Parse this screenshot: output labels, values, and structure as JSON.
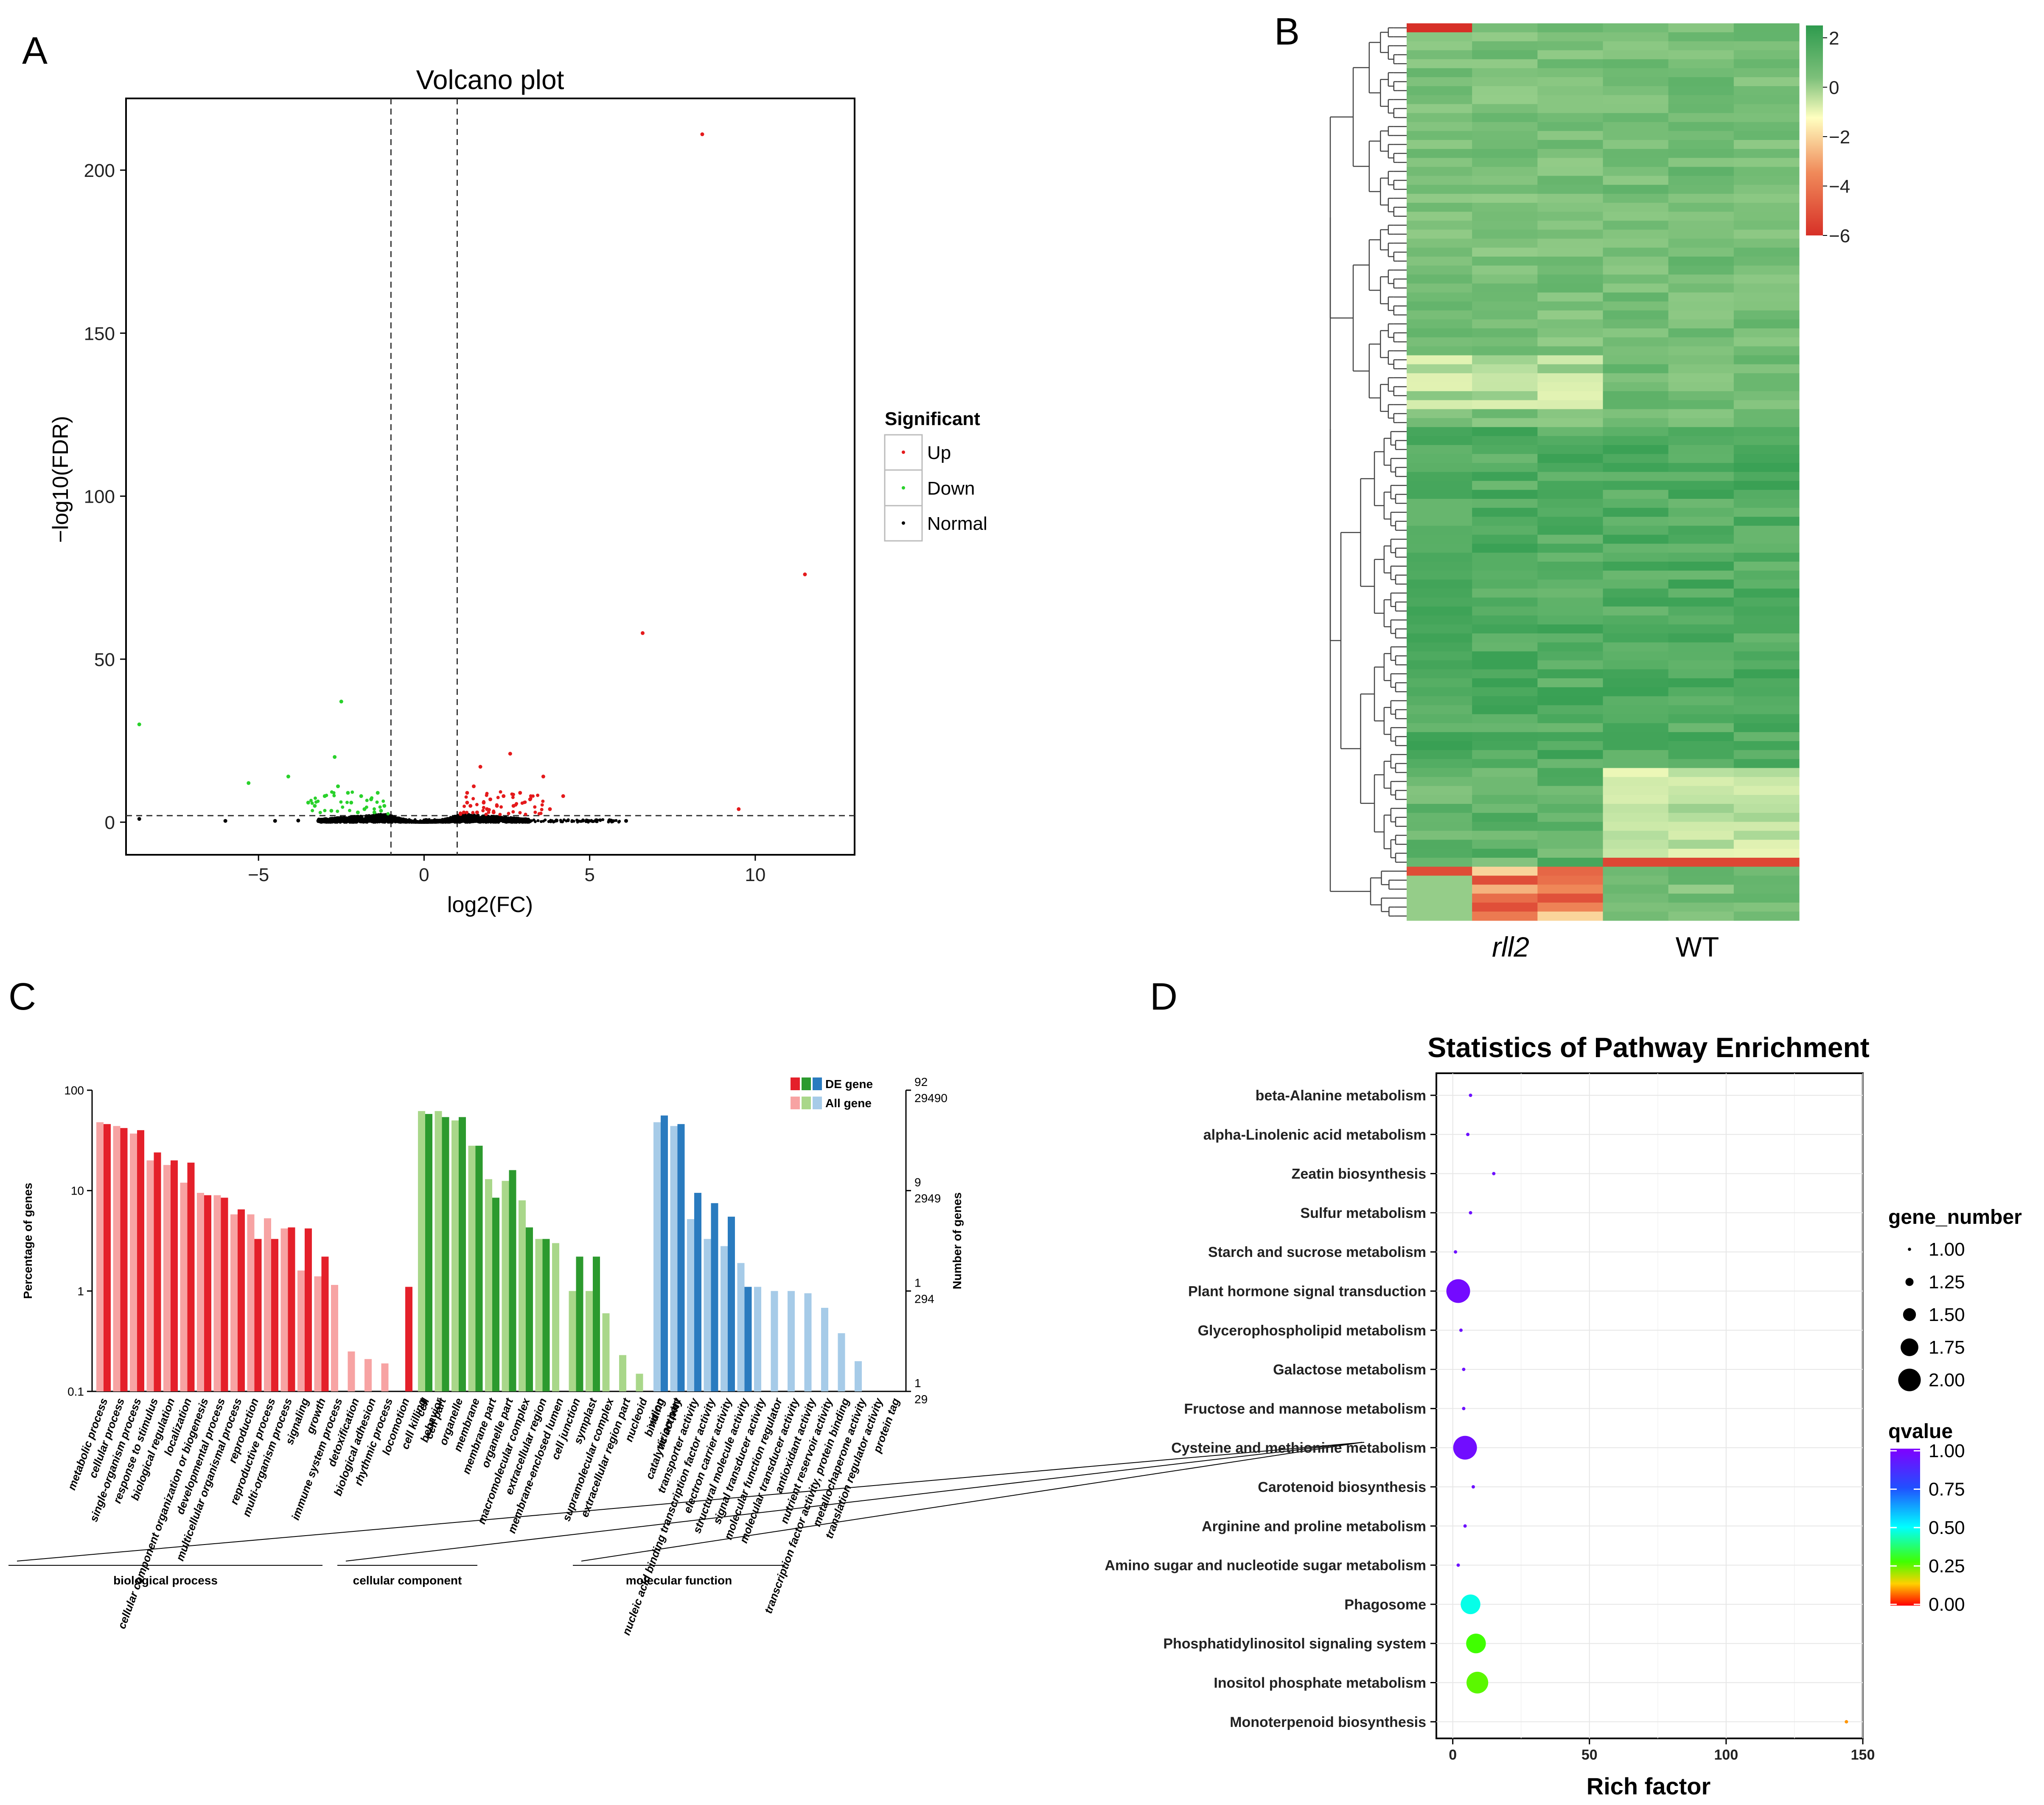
{
  "colors": {
    "up": "#e41a1c",
    "down": "#29d12b",
    "normal": "#000000",
    "go_bp_de": "#e4202a",
    "go_bp_all": "#f7a3a3",
    "go_cc_de": "#2c9a2e",
    "go_cc_all": "#a9d78a",
    "go_mf_de": "#2a7bbf",
    "go_mf_all": "#a6cbe8"
  },
  "chart_data": [
    {
      "panel": "A",
      "type": "scatter",
      "title": "Volcano plot",
      "xlabel": "log2(FC)",
      "ylabel": "−log10(FDR)",
      "xlim": [
        -9,
        13
      ],
      "ylim": [
        -10,
        222
      ],
      "xticks": [
        -5,
        0,
        5,
        10
      ],
      "yticks": [
        0,
        50,
        100,
        150,
        200
      ],
      "threshold_x": [
        -1,
        1
      ],
      "threshold_y": 2,
      "legend": {
        "title": "Significant",
        "entries": [
          "Up",
          "Down",
          "Normal"
        ]
      },
      "series": [
        {
          "name": "Up",
          "points": [
            [
              8.4,
              211
            ],
            [
              11.5,
              76
            ],
            [
              6.6,
              58
            ],
            [
              2.6,
              21
            ],
            [
              3.6,
              14
            ],
            [
              1.7,
              17
            ],
            [
              4.2,
              8
            ],
            [
              2.9,
              9
            ],
            [
              3.2,
              7
            ],
            [
              9.5,
              4
            ],
            [
              1.3,
              9
            ],
            [
              1.5,
              11
            ],
            [
              1.8,
              6
            ],
            [
              2.2,
              5
            ],
            [
              2.4,
              8
            ],
            [
              1.9,
              4
            ],
            [
              1.2,
              3
            ],
            [
              1.4,
              5
            ],
            [
              2.0,
              7
            ],
            [
              2.7,
              5
            ],
            [
              3.8,
              4
            ],
            [
              1.6,
              3
            ],
            [
              1.1,
              2.5
            ],
            [
              2.1,
              3
            ],
            [
              1.3,
              6
            ]
          ]
        },
        {
          "name": "Down",
          "points": [
            [
              -8.6,
              30
            ],
            [
              -2.5,
              37
            ],
            [
              -2.7,
              20
            ],
            [
              -5.3,
              12
            ],
            [
              -4.1,
              14
            ],
            [
              -2.6,
              11
            ],
            [
              -1.9,
              8
            ],
            [
              -3.0,
              8
            ],
            [
              -1.6,
              7
            ],
            [
              -1.4,
              9
            ],
            [
              -2.2,
              6
            ],
            [
              -1.2,
              5
            ],
            [
              -3.3,
              5
            ],
            [
              -1.8,
              4
            ],
            [
              -2.8,
              3.5
            ],
            [
              -1.5,
              3
            ],
            [
              -2.0,
              3
            ],
            [
              -1.3,
              3.5
            ],
            [
              -3.5,
              6
            ],
            [
              -2.3,
              9
            ]
          ]
        },
        {
          "name": "Normal",
          "points": [
            [
              -8.6,
              1
            ],
            [
              -6.0,
              0.4
            ],
            [
              -4.5,
              0.4
            ],
            [
              -3.8,
              0.5
            ],
            [
              -3.0,
              0.6
            ],
            [
              4.0,
              0.5
            ],
            [
              4.8,
              0.5
            ],
            [
              5.2,
              0.6
            ],
            [
              5.6,
              0.6
            ],
            [
              6.1,
              0.4
            ]
          ]
        }
      ]
    },
    {
      "panel": "B",
      "type": "heatmap",
      "groups": [
        "rll2",
        "WT"
      ],
      "colorbar_ticks": [
        2,
        0,
        -2,
        -4,
        -6
      ],
      "colorbar_range": [
        -6,
        2.5
      ]
    },
    {
      "panel": "C",
      "type": "bar",
      "ylabel": "Percentage of genes",
      "y2label": "Number of genes",
      "yscale": "log",
      "yticks": [
        "0.1",
        "1",
        "10",
        "100"
      ],
      "right_ticks": [
        {
          "de": "92",
          "all": "29490",
          "pct": 100
        },
        {
          "de": "9",
          "all": "2949",
          "pct": 10
        },
        {
          "de": "1",
          "all": "294",
          "pct": 1
        },
        {
          "de": "1",
          "all": "29",
          "pct": 0.1
        }
      ],
      "legend": [
        "DE gene",
        "All gene"
      ],
      "groups": [
        {
          "name": "biological process",
          "categories": [
            "metabolic process",
            "cellular process",
            "single-organism process",
            "response to stimulus",
            "biological regulation",
            "localization",
            "cellular component organization or biogenesis",
            "developmental process",
            "multicellular organismal process",
            "reproduction",
            "reproductive process",
            "multi-organism process",
            "signaling",
            "growth",
            "immune system process",
            "detoxification",
            "biological adhesion",
            "rhythmic process",
            "locomotion",
            "cell killing",
            "behavior"
          ],
          "de": [
            46,
            42,
            40,
            24,
            20,
            19,
            9,
            8.5,
            6.5,
            3.3,
            3.3,
            4.3,
            4.2,
            2.2,
            0,
            0,
            0,
            0,
            1.1,
            0,
            0
          ],
          "all": [
            48,
            44,
            37,
            20,
            18,
            12,
            9.5,
            9,
            5.8,
            5.8,
            5.3,
            4.2,
            1.6,
            1.4,
            1.15,
            0.25,
            0.21,
            0.19,
            0,
            0,
            0
          ]
        },
        {
          "name": "cellular component",
          "categories": [
            "cell",
            "cell part",
            "organelle",
            "membrane",
            "membrane part",
            "organelle part",
            "macromolecular complex",
            "extracellular region",
            "membrane-enclosed lumen",
            "cell junction",
            "symplast",
            "supramolecular complex",
            "extracellular region part",
            "nucleoid",
            "virion",
            "virion part"
          ],
          "de": [
            58,
            54,
            54,
            28,
            8.5,
            16,
            4.3,
            3.3,
            0,
            2.2,
            2.2,
            0,
            0,
            0,
            0,
            0
          ],
          "all": [
            62,
            62,
            50,
            28,
            13,
            12.5,
            8,
            3.3,
            3.0,
            1.0,
            1.0,
            0.6,
            0.23,
            0.15,
            0,
            0
          ]
        },
        {
          "name": "molecular function",
          "categories": [
            "binding",
            "catalytic activity",
            "transporter activity",
            "nucleic acid binding transcription factor activity",
            "electron carrier activity",
            "structural molecule activity",
            "signal transducer activity",
            "molecular function regulator",
            "molecular transducer activity",
            "antioxidant activity",
            "nutrient reservoir activity",
            "transcription factor activity, protein binding",
            "metallochaperone activity",
            "translation regulator activity",
            "protein tag"
          ],
          "de": [
            56,
            46,
            9.5,
            7.5,
            5.5,
            1.1,
            0,
            0,
            0,
            0,
            0,
            0,
            0,
            0,
            0
          ],
          "all": [
            48,
            44,
            5.2,
            3.3,
            2.8,
            1.9,
            1.1,
            1.0,
            1.0,
            0.95,
            0.68,
            0.38,
            0.2,
            0,
            0
          ]
        }
      ]
    },
    {
      "panel": "D",
      "type": "scatter",
      "title": "Statistics of Pathway Enrichment",
      "xlabel": "Rich factor",
      "xlim": [
        -6,
        150
      ],
      "xticks": [
        0,
        50,
        100,
        150
      ],
      "size_legend": {
        "title": "gene_number",
        "values": [
          "1.00",
          "1.25",
          "1.50",
          "1.75",
          "2.00"
        ]
      },
      "color_legend": {
        "title": "qvalue",
        "values": [
          "1.00",
          "0.75",
          "0.50",
          "0.25",
          "0.00"
        ]
      },
      "pathways": [
        {
          "name": "beta-Alanine metabolism",
          "rich_factor": 6.5,
          "gene_number": 1,
          "qvalue": 0.95
        },
        {
          "name": "alpha-Linolenic acid metabolism",
          "rich_factor": 5.5,
          "gene_number": 1,
          "qvalue": 0.95
        },
        {
          "name": "Zeatin biosynthesis",
          "rich_factor": 15,
          "gene_number": 1,
          "qvalue": 0.95
        },
        {
          "name": "Sulfur metabolism",
          "rich_factor": 6.5,
          "gene_number": 1,
          "qvalue": 0.95
        },
        {
          "name": "Starch and sucrose metabolism",
          "rich_factor": 1,
          "gene_number": 1,
          "qvalue": 0.95
        },
        {
          "name": "Plant hormone signal transduction",
          "rich_factor": 2,
          "gene_number": 2,
          "qvalue": 0.97
        },
        {
          "name": "Glycerophospholipid metabolism",
          "rich_factor": 3,
          "gene_number": 1,
          "qvalue": 0.95
        },
        {
          "name": "Galactose metabolism",
          "rich_factor": 4,
          "gene_number": 1,
          "qvalue": 0.95
        },
        {
          "name": "Fructose and mannose metabolism",
          "rich_factor": 4,
          "gene_number": 1,
          "qvalue": 0.95
        },
        {
          "name": "Cysteine and methionine metabolism",
          "rich_factor": 4.5,
          "gene_number": 2,
          "qvalue": 0.96
        },
        {
          "name": "Carotenoid biosynthesis",
          "rich_factor": 7.5,
          "gene_number": 1,
          "qvalue": 0.95
        },
        {
          "name": "Arginine and proline metabolism",
          "rich_factor": 4.5,
          "gene_number": 1,
          "qvalue": 0.95
        },
        {
          "name": "Amino sugar and nucleotide sugar metabolism",
          "rich_factor": 2,
          "gene_number": 1,
          "qvalue": 0.95
        },
        {
          "name": "Phagosome",
          "rich_factor": 6.5,
          "gene_number": 1.8,
          "qvalue": 0.48
        },
        {
          "name": "Phosphatidylinositol signaling system",
          "rich_factor": 8.5,
          "gene_number": 1.8,
          "qvalue": 0.28
        },
        {
          "name": "Inositol phosphate metabolism",
          "rich_factor": 9,
          "gene_number": 1.9,
          "qvalue": 0.26
        },
        {
          "name": "Monoterpenoid biosynthesis",
          "rich_factor": 144,
          "gene_number": 1,
          "qvalue": 0.1
        }
      ]
    }
  ],
  "labels": {
    "panel_a": "A",
    "panel_b": "B",
    "panel_c": "C",
    "panel_d": "D"
  }
}
